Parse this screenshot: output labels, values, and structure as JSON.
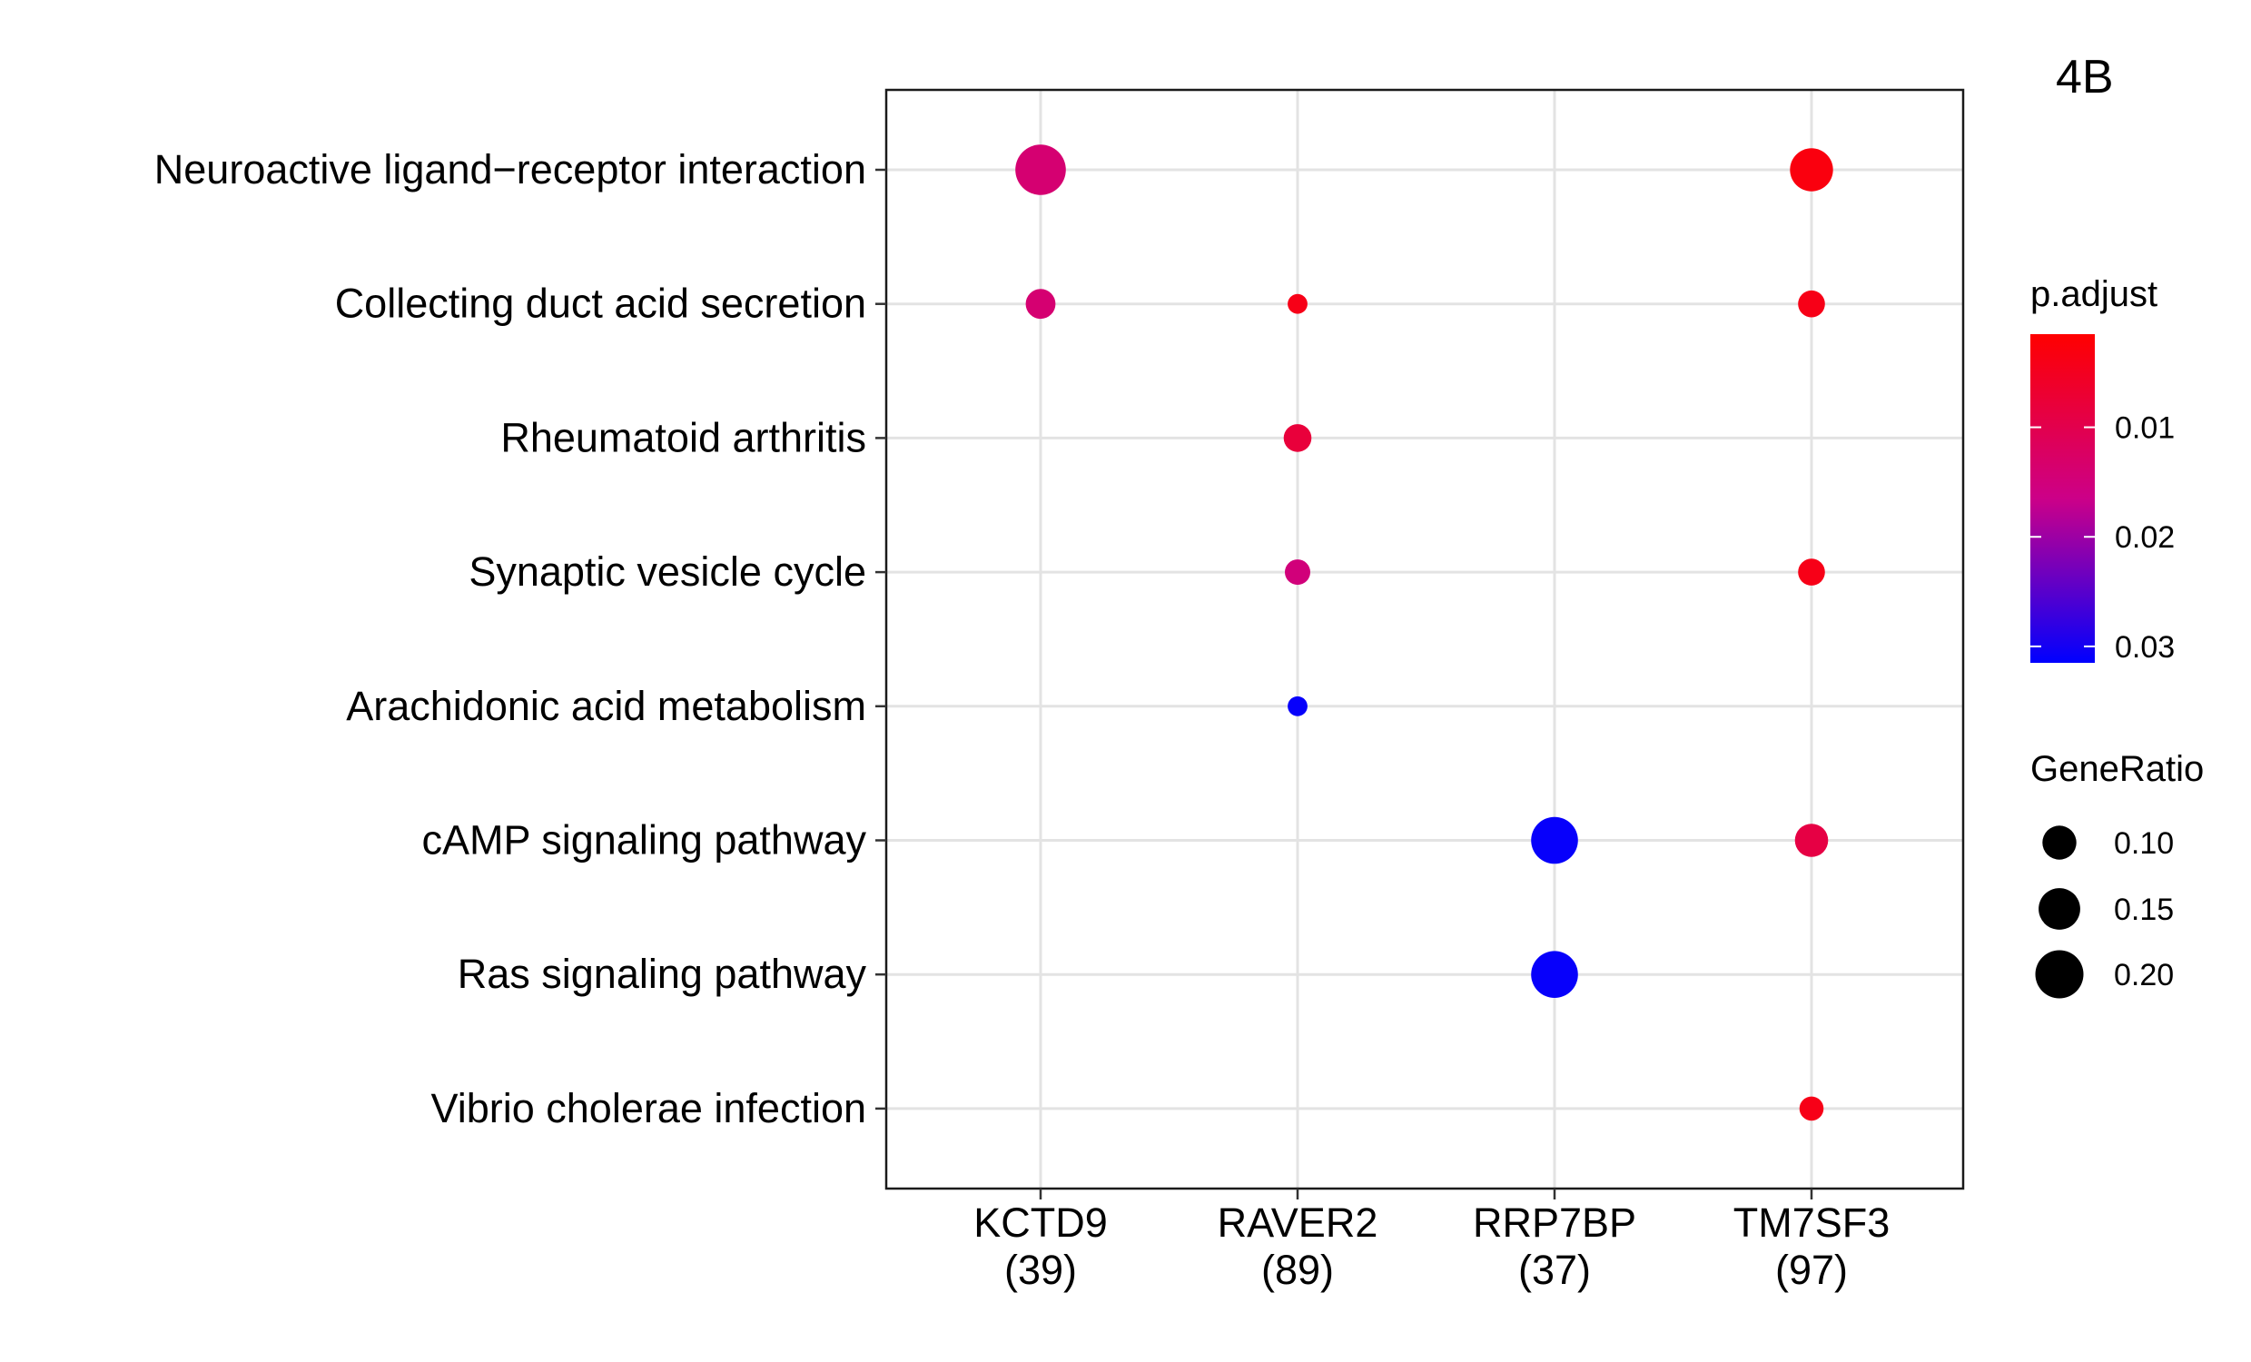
{
  "chart_data": {
    "type": "scatter",
    "panel_label": "4B",
    "title": "",
    "xlabel": "",
    "ylabel": "",
    "categories_x": [
      {
        "name": "KCTD9",
        "count": "(39)"
      },
      {
        "name": "RAVER2",
        "count": "(89)"
      },
      {
        "name": "RRP7BP",
        "count": "(37)"
      },
      {
        "name": "TM7SF3",
        "count": "(97)"
      }
    ],
    "categories_y": [
      "Neuroactive ligand−receptor interaction",
      "Collecting duct acid secretion",
      "Rheumatoid arthritis",
      "Synaptic vesicle cycle",
      "Arachidonic acid metabolism",
      "cAMP signaling pathway",
      "Ras signaling pathway",
      "Vibrio cholerae infection"
    ],
    "points": [
      {
        "x": "KCTD9",
        "y": "Neuroactive ligand−receptor interaction",
        "gene_ratio": 0.22,
        "p_adjust": 0.014
      },
      {
        "x": "TM7SF3",
        "y": "Neuroactive ligand−receptor interaction",
        "gene_ratio": 0.16,
        "p_adjust": 0.003
      },
      {
        "x": "KCTD9",
        "y": "Collecting duct acid secretion",
        "gene_ratio": 0.077,
        "p_adjust": 0.014
      },
      {
        "x": "RAVER2",
        "y": "Collecting duct acid secretion",
        "gene_ratio": 0.034,
        "p_adjust": 0.004
      },
      {
        "x": "TM7SF3",
        "y": "Collecting duct acid secretion",
        "gene_ratio": 0.062,
        "p_adjust": 0.004
      },
      {
        "x": "RAVER2",
        "y": "Rheumatoid arthritis",
        "gene_ratio": 0.067,
        "p_adjust": 0.008
      },
      {
        "x": "RAVER2",
        "y": "Synaptic vesicle cycle",
        "gene_ratio": 0.056,
        "p_adjust": 0.015
      },
      {
        "x": "TM7SF3",
        "y": "Synaptic vesicle cycle",
        "gene_ratio": 0.062,
        "p_adjust": 0.004
      },
      {
        "x": "RAVER2",
        "y": "Arachidonic acid metabolism",
        "gene_ratio": 0.034,
        "p_adjust": 0.031
      },
      {
        "x": "RRP7BP",
        "y": "cAMP signaling pathway",
        "gene_ratio": 0.19,
        "p_adjust": 0.031
      },
      {
        "x": "TM7SF3",
        "y": "cAMP signaling pathway",
        "gene_ratio": 0.095,
        "p_adjust": 0.009
      },
      {
        "x": "RRP7BP",
        "y": "Ras signaling pathway",
        "gene_ratio": 0.19,
        "p_adjust": 0.031
      },
      {
        "x": "TM7SF3",
        "y": "Vibrio cholerae infection",
        "gene_ratio": 0.05,
        "p_adjust": 0.004
      }
    ],
    "color_legend": {
      "title": "p.adjust",
      "range": [
        0.0015,
        0.0315
      ],
      "ticks": [
        0.01,
        0.02,
        0.03
      ],
      "tick_labels": [
        "0.01",
        "0.02",
        "0.03"
      ],
      "low_color": "#FF0000",
      "high_color": "#0000FF"
    },
    "size_legend": {
      "title": "GeneRatio",
      "values": [
        0.1,
        0.15,
        0.2
      ],
      "labels": [
        "0.10",
        "0.15",
        "0.20"
      ]
    },
    "grid": true,
    "legend_position": "right"
  }
}
